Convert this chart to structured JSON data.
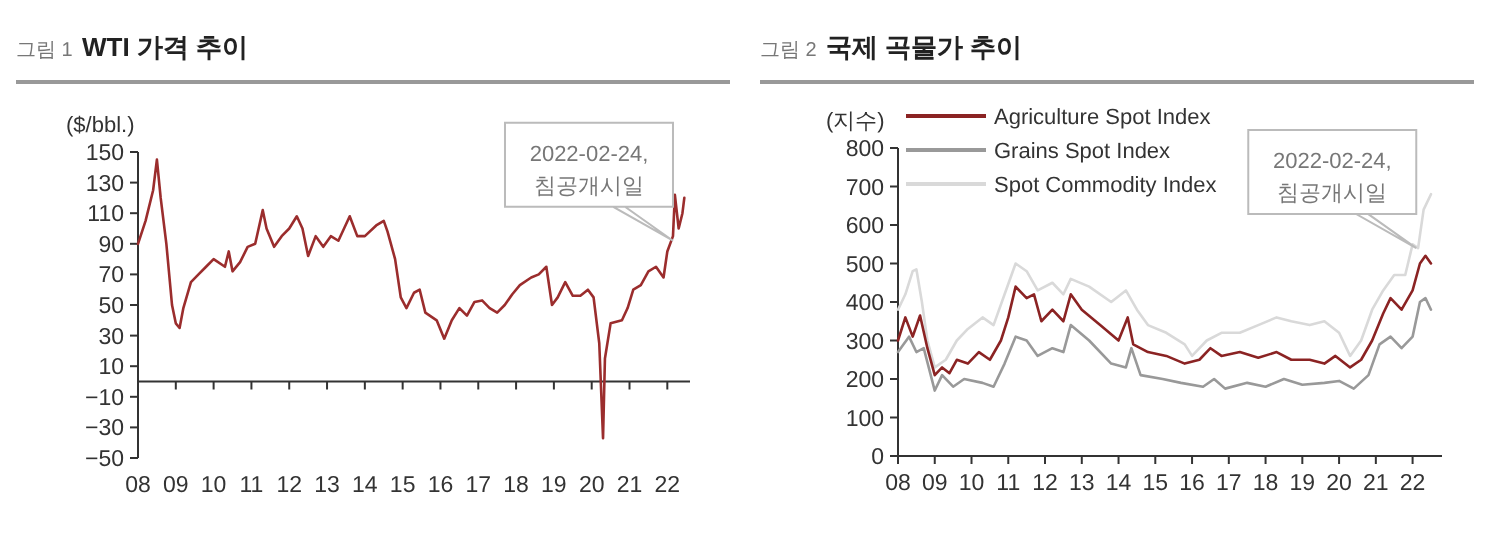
{
  "chart_data": [
    {
      "type": "line",
      "title": "WTI 가격 추이",
      "ylabel": "($/bbl.)",
      "annotations": [
        "그림 1",
        {
          "text": "2022-02-24,\n침공개시일",
          "x": 2022.15,
          "y": 92
        }
      ],
      "xlim": [
        2008,
        2022.6
      ],
      "ylim": [
        -50,
        150
      ],
      "yticks": [
        -50,
        -30,
        -10,
        10,
        30,
        50,
        70,
        90,
        110,
        130,
        150
      ],
      "xticks": [
        {
          "value": 2008,
          "label": "08"
        },
        {
          "value": 2009,
          "label": "09"
        },
        {
          "value": 2010,
          "label": "10"
        },
        {
          "value": 2011,
          "label": "11"
        },
        {
          "value": 2012,
          "label": "12"
        },
        {
          "value": 2013,
          "label": "13"
        },
        {
          "value": 2014,
          "label": "14"
        },
        {
          "value": 2015,
          "label": "15"
        },
        {
          "value": 2016,
          "label": "16"
        },
        {
          "value": 2017,
          "label": "17"
        },
        {
          "value": 2018,
          "label": "18"
        },
        {
          "value": 2019,
          "label": "19"
        },
        {
          "value": 2020,
          "label": "20"
        },
        {
          "value": 2021,
          "label": "21"
        },
        {
          "value": 2022,
          "label": "22"
        }
      ],
      "grid": false,
      "legend": false,
      "series": [
        {
          "color": "#9b2d2d",
          "x": [
            2008.0,
            2008.2,
            2008.4,
            2008.5,
            2008.6,
            2008.75,
            2008.9,
            2009.0,
            2009.1,
            2009.2,
            2009.4,
            2009.6,
            2009.8,
            2010.0,
            2010.3,
            2010.4,
            2010.5,
            2010.7,
            2010.9,
            2011.1,
            2011.3,
            2011.4,
            2011.6,
            2011.8,
            2012.0,
            2012.2,
            2012.35,
            2012.5,
            2012.7,
            2012.9,
            2013.1,
            2013.3,
            2013.6,
            2013.8,
            2014.0,
            2014.3,
            2014.5,
            2014.6,
            2014.8,
            2014.95,
            2015.1,
            2015.3,
            2015.45,
            2015.6,
            2015.9,
            2016.1,
            2016.3,
            2016.5,
            2016.7,
            2016.9,
            2017.1,
            2017.3,
            2017.5,
            2017.7,
            2017.9,
            2018.1,
            2018.4,
            2018.6,
            2018.8,
            2018.95,
            2019.1,
            2019.3,
            2019.5,
            2019.7,
            2019.9,
            2020.05,
            2020.2,
            2020.3,
            2020.35,
            2020.5,
            2020.8,
            2020.95,
            2021.1,
            2021.3,
            2021.5,
            2021.7,
            2021.9,
            2022.0,
            2022.15,
            2022.2,
            2022.3,
            2022.4,
            2022.45
          ],
          "values": [
            90,
            105,
            125,
            145,
            120,
            90,
            50,
            38,
            35,
            48,
            65,
            70,
            75,
            80,
            75,
            85,
            72,
            78,
            88,
            90,
            112,
            100,
            88,
            95,
            100,
            108,
            100,
            82,
            95,
            88,
            95,
            92,
            108,
            95,
            95,
            102,
            105,
            98,
            80,
            55,
            48,
            58,
            60,
            45,
            40,
            28,
            40,
            48,
            43,
            52,
            53,
            48,
            45,
            50,
            57,
            63,
            68,
            70,
            75,
            50,
            55,
            65,
            56,
            56,
            60,
            55,
            25,
            -37,
            15,
            38,
            40,
            48,
            60,
            63,
            72,
            75,
            68,
            85,
            95,
            122,
            100,
            110,
            120
          ]
        }
      ]
    },
    {
      "type": "line",
      "title": "국제 곡물가 추이",
      "ylabel": "(지수)",
      "annotations": [
        "그림 2",
        {
          "text": "2022-02-24,\n침공개시일",
          "x": 2022.1,
          "y": 540
        }
      ],
      "xlim": [
        2008,
        2022.8
      ],
      "ylim": [
        0,
        800
      ],
      "yticks": [
        0,
        100,
        200,
        300,
        400,
        500,
        600,
        700,
        800
      ],
      "xticks": [
        {
          "value": 2008,
          "label": "08"
        },
        {
          "value": 2009,
          "label": "09"
        },
        {
          "value": 2010,
          "label": "10"
        },
        {
          "value": 2011,
          "label": "11"
        },
        {
          "value": 2012,
          "label": "12"
        },
        {
          "value": 2013,
          "label": "13"
        },
        {
          "value": 2014,
          "label": "14"
        },
        {
          "value": 2015,
          "label": "15"
        },
        {
          "value": 2016,
          "label": "16"
        },
        {
          "value": 2017,
          "label": "17"
        },
        {
          "value": 2018,
          "label": "18"
        },
        {
          "value": 2019,
          "label": "19"
        },
        {
          "value": 2020,
          "label": "20"
        },
        {
          "value": 2021,
          "label": "21"
        },
        {
          "value": 2022,
          "label": "22"
        }
      ],
      "grid": false,
      "legend": "top left",
      "series": [
        {
          "name": "Spot Commodity Index",
          "color": "#d9d9d9",
          "x": [
            2008.0,
            2008.2,
            2008.4,
            2008.5,
            2008.65,
            2008.8,
            2009.0,
            2009.3,
            2009.6,
            2009.9,
            2010.3,
            2010.6,
            2010.9,
            2011.2,
            2011.5,
            2011.8,
            2012.2,
            2012.5,
            2012.7,
            2013.2,
            2013.8,
            2014.2,
            2014.5,
            2014.8,
            2015.3,
            2015.8,
            2016.0,
            2016.4,
            2016.8,
            2017.3,
            2017.8,
            2018.3,
            2018.7,
            2019.2,
            2019.6,
            2020.0,
            2020.3,
            2020.6,
            2020.9,
            2021.2,
            2021.5,
            2021.8,
            2022.0,
            2022.15,
            2022.3,
            2022.5
          ],
          "values": [
            380,
            420,
            480,
            485,
            400,
            300,
            230,
            250,
            300,
            330,
            360,
            340,
            420,
            500,
            480,
            430,
            450,
            420,
            460,
            440,
            400,
            430,
            380,
            340,
            320,
            290,
            260,
            300,
            320,
            320,
            340,
            360,
            350,
            340,
            350,
            320,
            260,
            300,
            380,
            430,
            470,
            470,
            550,
            540,
            640,
            680
          ]
        },
        {
          "name": "Grains Spot Index",
          "color": "#999999",
          "x": [
            2008.0,
            2008.3,
            2008.5,
            2008.7,
            2009.0,
            2009.2,
            2009.5,
            2009.8,
            2010.3,
            2010.6,
            2010.9,
            2011.2,
            2011.5,
            2011.8,
            2012.2,
            2012.5,
            2012.7,
            2013.2,
            2013.8,
            2014.2,
            2014.35,
            2014.6,
            2015.2,
            2015.7,
            2016.3,
            2016.6,
            2016.9,
            2017.5,
            2018.0,
            2018.5,
            2019.0,
            2019.6,
            2020.0,
            2020.4,
            2020.8,
            2021.1,
            2021.4,
            2021.7,
            2022.0,
            2022.2,
            2022.35,
            2022.5
          ],
          "values": [
            270,
            310,
            270,
            280,
            170,
            210,
            180,
            200,
            190,
            180,
            240,
            310,
            300,
            260,
            280,
            270,
            340,
            300,
            240,
            230,
            280,
            210,
            200,
            190,
            180,
            200,
            175,
            190,
            180,
            200,
            185,
            190,
            195,
            175,
            210,
            290,
            310,
            280,
            310,
            400,
            410,
            380
          ]
        },
        {
          "name": "Agriculture Spot Index",
          "color": "#8b2323",
          "x": [
            2008.0,
            2008.2,
            2008.4,
            2008.6,
            2008.8,
            2009.0,
            2009.2,
            2009.4,
            2009.6,
            2009.9,
            2010.2,
            2010.5,
            2010.8,
            2011.0,
            2011.2,
            2011.5,
            2011.7,
            2011.9,
            2012.2,
            2012.5,
            2012.7,
            2013.0,
            2013.5,
            2014.0,
            2014.25,
            2014.4,
            2014.8,
            2015.3,
            2015.8,
            2016.2,
            2016.5,
            2016.8,
            2017.3,
            2017.8,
            2018.3,
            2018.7,
            2019.2,
            2019.6,
            2019.9,
            2020.3,
            2020.6,
            2020.9,
            2021.2,
            2021.4,
            2021.7,
            2022.0,
            2022.2,
            2022.35,
            2022.5
          ],
          "values": [
            300,
            360,
            310,
            365,
            280,
            210,
            230,
            215,
            250,
            240,
            270,
            250,
            300,
            360,
            440,
            410,
            420,
            350,
            380,
            350,
            420,
            380,
            340,
            300,
            360,
            290,
            270,
            260,
            240,
            250,
            280,
            260,
            270,
            255,
            270,
            250,
            250,
            240,
            260,
            230,
            250,
            300,
            370,
            410,
            380,
            430,
            500,
            520,
            500
          ]
        }
      ]
    }
  ]
}
